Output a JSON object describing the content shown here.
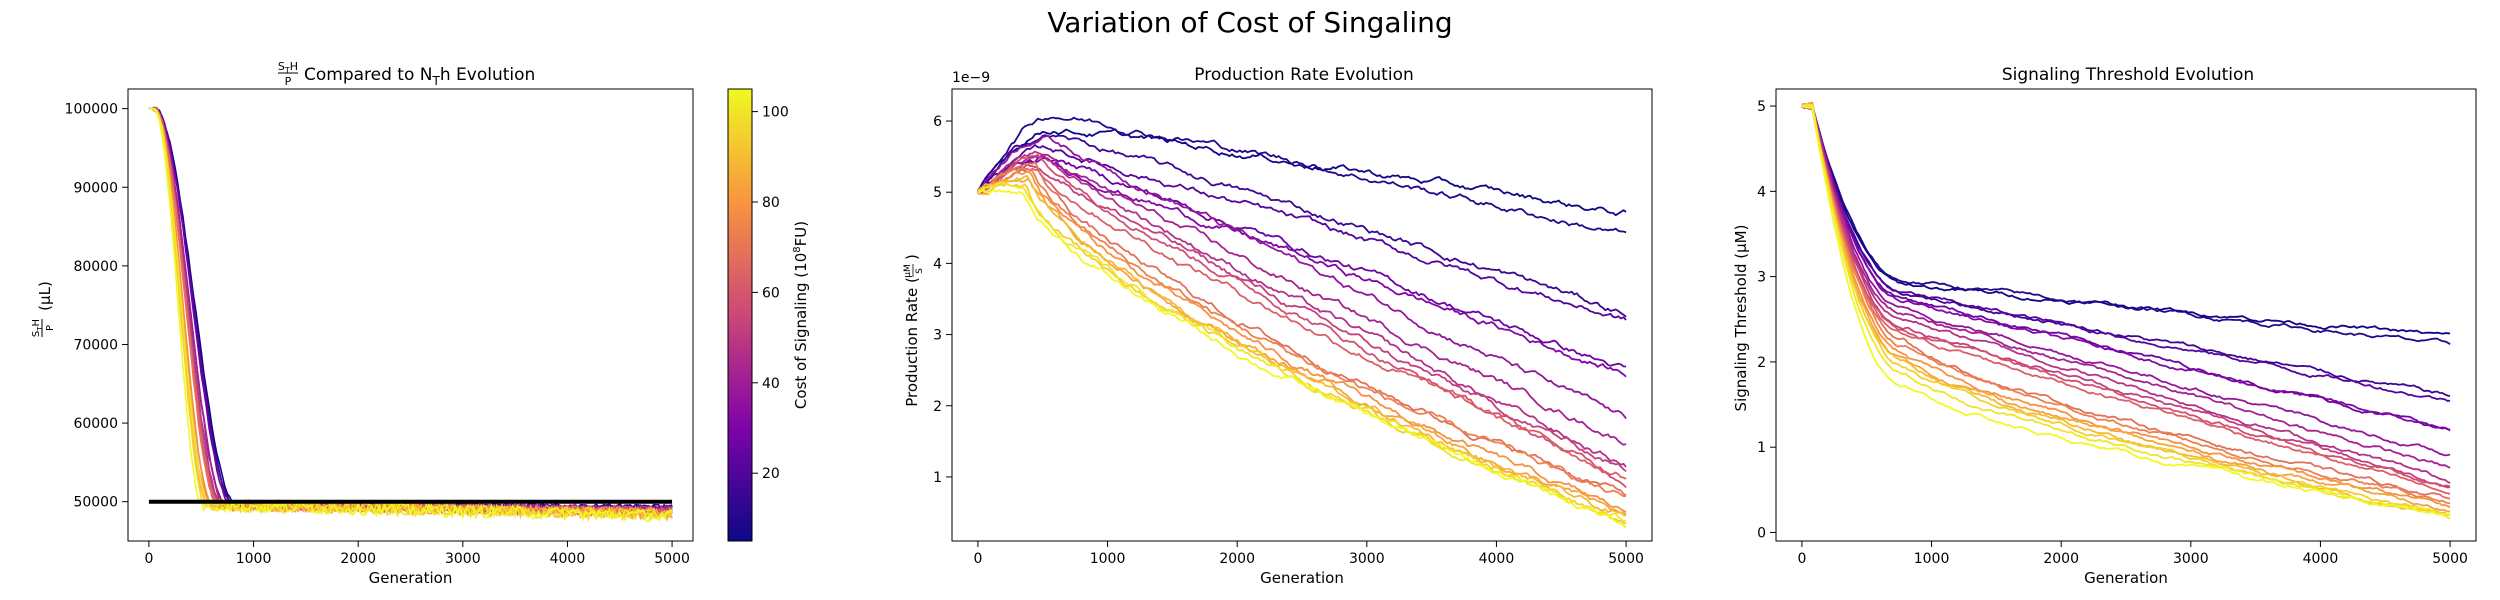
{
  "figure": {
    "title": "Variation of Cost of Singaling"
  },
  "colors": {
    "line_high": "#fde725",
    "colormap": "plasma",
    "reference": "#000000"
  },
  "chart_data": [
    {
      "type": "line",
      "title_main": "Compared to N",
      "title_subscript": "T",
      "title_tail": "h Evolution",
      "title_fraction_numerator": "S",
      "title_fraction_numerator_subscript": "T",
      "title_fraction_numerator_tail": "H",
      "title_fraction_denominator": "P",
      "xlabel": "Generation",
      "ylabel": "(μL)",
      "x_ticks": [
        0,
        1000,
        2000,
        3000,
        4000,
        5000
      ],
      "y_ticks": [
        50000,
        60000,
        70000,
        80000,
        90000,
        100000
      ],
      "xlim": [
        -200,
        5200
      ],
      "ylim": [
        45000,
        102500
      ],
      "series_count": 20,
      "start": 100000,
      "plateau": 49700,
      "reference_line": {
        "y": 50000,
        "x": [
          0,
          5000
        ]
      },
      "colorbar": {
        "label": "Cost of Signaling (10",
        "label_superscript": "8",
        "label_tail": "FU)",
        "ticks": [
          20,
          40,
          60,
          80,
          100
        ],
        "range": [
          5,
          105
        ]
      }
    },
    {
      "type": "line",
      "title": "Production Rate Evolution",
      "xlabel": "Generation",
      "ylabel": "Production Rate (",
      "ylabel_fraction_numerator": "μM",
      "ylabel_fraction_denominator": "S",
      "ylabel_tail": ")",
      "offset_text": "1e−9",
      "x_ticks": [
        0,
        1000,
        2000,
        3000,
        4000,
        5000
      ],
      "y_ticks": [
        1,
        2,
        3,
        4,
        5,
        6
      ],
      "xlim": [
        -200,
        5200
      ],
      "ylim": [
        0.1,
        6.45
      ],
      "start": 5.0,
      "series": [
        {
          "cost": 5,
          "peak": 5.9,
          "final": 4.7
        },
        {
          "cost": 10,
          "peak": 6.1,
          "final": 4.4
        },
        {
          "cost": 15,
          "peak": 5.8,
          "final": 3.3
        },
        {
          "cost": 20,
          "peak": 5.6,
          "final": 3.2
        },
        {
          "cost": 25,
          "peak": 5.5,
          "final": 2.5
        },
        {
          "cost": 30,
          "peak": 5.4,
          "final": 2.45
        },
        {
          "cost": 35,
          "peak": 5.8,
          "final": 1.8
        },
        {
          "cost": 40,
          "peak": 5.5,
          "final": 1.5
        },
        {
          "cost": 45,
          "peak": 5.5,
          "final": 1.15
        },
        {
          "cost": 50,
          "peak": 5.4,
          "final": 1.1
        },
        {
          "cost": 55,
          "peak": 5.5,
          "final": 0.95
        },
        {
          "cost": 60,
          "peak": 5.3,
          "final": 1.0
        },
        {
          "cost": 65,
          "peak": 5.4,
          "final": 0.75
        },
        {
          "cost": 70,
          "peak": 5.3,
          "final": 0.7
        },
        {
          "cost": 75,
          "peak": 5.3,
          "final": 0.5
        },
        {
          "cost": 80,
          "peak": 5.2,
          "final": 0.45
        },
        {
          "cost": 85,
          "peak": 5.2,
          "final": 0.4
        },
        {
          "cost": 90,
          "peak": 5.1,
          "final": 0.4
        },
        {
          "cost": 95,
          "peak": 5.1,
          "final": 0.35
        },
        {
          "cost": 100,
          "peak": 5.0,
          "final": 0.35
        }
      ]
    },
    {
      "type": "line",
      "title": "Signaling Threshold Evolution",
      "xlabel": "Generation",
      "ylabel": "Signaling Threshold (μM)",
      "x_ticks": [
        0,
        1000,
        2000,
        3000,
        4000,
        5000
      ],
      "y_ticks": [
        0,
        1,
        2,
        3,
        4,
        5
      ],
      "xlim": [
        -200,
        5200
      ],
      "ylim": [
        -0.1,
        5.2
      ],
      "start": 5.0,
      "series": [
        {
          "cost": 5,
          "mid": 2.9,
          "final": 2.3
        },
        {
          "cost": 10,
          "mid": 2.95,
          "final": 2.2
        },
        {
          "cost": 15,
          "mid": 2.8,
          "final": 1.6
        },
        {
          "cost": 20,
          "mid": 2.8,
          "final": 1.55
        },
        {
          "cost": 25,
          "mid": 2.75,
          "final": 1.2
        },
        {
          "cost": 30,
          "mid": 2.7,
          "final": 1.2
        },
        {
          "cost": 35,
          "mid": 2.6,
          "final": 0.9
        },
        {
          "cost": 40,
          "mid": 2.55,
          "final": 0.75
        },
        {
          "cost": 45,
          "mid": 2.5,
          "final": 0.6
        },
        {
          "cost": 50,
          "mid": 2.4,
          "final": 0.55
        },
        {
          "cost": 55,
          "mid": 2.35,
          "final": 0.5
        },
        {
          "cost": 60,
          "mid": 2.3,
          "final": 0.45
        },
        {
          "cost": 65,
          "mid": 2.25,
          "final": 0.4
        },
        {
          "cost": 70,
          "mid": 2.2,
          "final": 0.35
        },
        {
          "cost": 75,
          "mid": 2.1,
          "final": 0.3
        },
        {
          "cost": 80,
          "mid": 2.05,
          "final": 0.25
        },
        {
          "cost": 85,
          "mid": 2.0,
          "final": 0.2
        },
        {
          "cost": 90,
          "mid": 1.95,
          "final": 0.2
        },
        {
          "cost": 95,
          "mid": 1.85,
          "final": 0.2
        },
        {
          "cost": 100,
          "mid": 1.7,
          "final": 0.18
        }
      ]
    }
  ]
}
